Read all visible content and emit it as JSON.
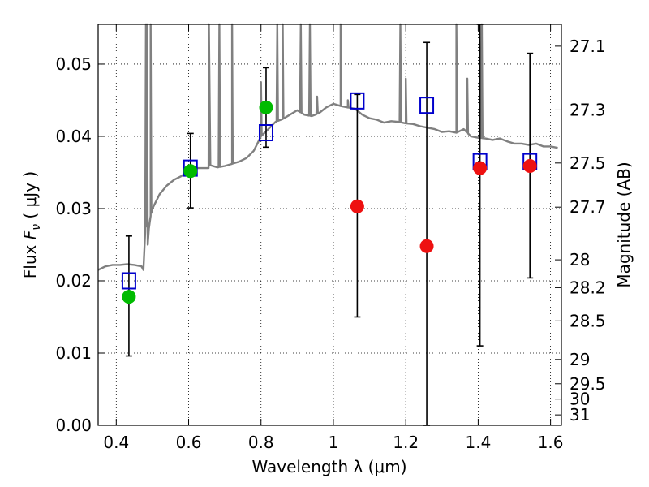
{
  "chart_data": {
    "type": "scatter",
    "xlabel": "Wavelength  λ (μm)",
    "ylabel_prefix": "Flux  ",
    "ylabel_symbol": "F",
    "ylabel_subscript": "ν",
    "ylabel_suffix": "  ( μJy )",
    "y2label": "Magnitude (AB)",
    "xlim": [
      0.35,
      1.63
    ],
    "ylim": [
      0.0,
      0.0555
    ],
    "grid": true,
    "x_ticks": [
      {
        "value": 0.4,
        "label": "0.4"
      },
      {
        "value": 0.6,
        "label": "0.6"
      },
      {
        "value": 0.8,
        "label": "0.8"
      },
      {
        "value": 1.0,
        "label": "1"
      },
      {
        "value": 1.2,
        "label": "1.2"
      },
      {
        "value": 1.4,
        "label": "1.4"
      },
      {
        "value": 1.6,
        "label": "1.6"
      }
    ],
    "y_ticks": [
      {
        "value": 0.0,
        "label": "0.00"
      },
      {
        "value": 0.01,
        "label": "0.01"
      },
      {
        "value": 0.02,
        "label": "0.02"
      },
      {
        "value": 0.03,
        "label": "0.03"
      },
      {
        "value": 0.04,
        "label": "0.04"
      },
      {
        "value": 0.05,
        "label": "0.05"
      }
    ],
    "y2_ticks": [
      {
        "value": 27.1,
        "label": "27.1"
      },
      {
        "value": 27.3,
        "label": "27.3"
      },
      {
        "value": 27.5,
        "label": "27.5"
      },
      {
        "value": 27.7,
        "label": "27.7"
      },
      {
        "value": 28.0,
        "label": "28"
      },
      {
        "value": 28.2,
        "label": "28.2"
      },
      {
        "value": 28.5,
        "label": "28.5"
      },
      {
        "value": 29.0,
        "label": "29"
      },
      {
        "value": 29.5,
        "label": "29.5"
      },
      {
        "value": 30.0,
        "label": "30"
      },
      {
        "value": 31.0,
        "label": "31"
      }
    ],
    "series": [
      {
        "type": "line",
        "color": "#808080",
        "x": [
          0.35,
          0.37,
          0.39,
          0.41,
          0.43,
          0.45,
          0.47,
          0.475,
          0.48,
          0.482,
          0.485,
          0.487,
          0.49,
          0.495,
          0.5,
          0.52,
          0.54,
          0.56,
          0.58,
          0.6,
          0.62,
          0.64,
          0.655,
          0.656,
          0.66,
          0.68,
          0.7,
          0.72,
          0.74,
          0.76,
          0.78,
          0.8,
          0.82,
          0.84,
          0.86,
          0.88,
          0.9,
          0.92,
          0.94,
          0.96,
          0.98,
          1.0,
          1.02,
          1.04,
          1.06,
          1.08,
          1.1,
          1.12,
          1.14,
          1.16,
          1.18,
          1.2,
          1.22,
          1.24,
          1.26,
          1.28,
          1.3,
          1.32,
          1.34,
          1.36,
          1.38,
          1.4,
          1.42,
          1.44,
          1.46,
          1.48,
          1.5,
          1.52,
          1.54,
          1.56,
          1.58,
          1.6,
          1.62
        ],
        "y": [
          0.0215,
          0.022,
          0.0222,
          0.0222,
          0.0223,
          0.0222,
          0.022,
          0.0215,
          0.0268,
          0.0555,
          0.0275,
          0.025,
          0.0272,
          0.029,
          0.03,
          0.032,
          0.0332,
          0.034,
          0.0345,
          0.0352,
          0.0356,
          0.0356,
          0.0356,
          0.0555,
          0.036,
          0.0357,
          0.0359,
          0.0362,
          0.0365,
          0.037,
          0.038,
          0.04,
          0.041,
          0.042,
          0.0424,
          0.043,
          0.0436,
          0.043,
          0.0428,
          0.0432,
          0.044,
          0.0445,
          0.0442,
          0.044,
          0.0438,
          0.043,
          0.0425,
          0.0423,
          0.0419,
          0.0421,
          0.042,
          0.0418,
          0.0417,
          0.0414,
          0.0412,
          0.041,
          0.0406,
          0.0407,
          0.0405,
          0.041,
          0.04,
          0.0398,
          0.0397,
          0.0395,
          0.0397,
          0.0393,
          0.039,
          0.039,
          0.0388,
          0.039,
          0.0386,
          0.0386,
          0.0384
        ]
      },
      {
        "type": "errorbar",
        "color": "#000000",
        "points": [
          {
            "x": 0.435,
            "low": 0.0096,
            "high": 0.0262
          },
          {
            "x": 0.605,
            "low": 0.0301,
            "high": 0.0404
          },
          {
            "x": 0.814,
            "low": 0.0385,
            "high": 0.0495
          },
          {
            "x": 1.066,
            "low": 0.015,
            "high": 0.0458
          },
          {
            "x": 1.258,
            "low": 0.0,
            "high": 0.053
          },
          {
            "x": 1.405,
            "low": 0.011,
            "high": 0.0555
          },
          {
            "x": 1.543,
            "low": 0.0204,
            "high": 0.0515
          }
        ]
      },
      {
        "type": "markers",
        "marker": "square",
        "color": "#0000cc",
        "x": [
          0.435,
          0.605,
          0.814,
          1.066,
          1.258,
          1.405,
          1.543
        ],
        "y": [
          0.02,
          0.0356,
          0.0405,
          0.0449,
          0.0443,
          0.0365,
          0.0365
        ]
      },
      {
        "type": "markers",
        "marker": "circle",
        "color": "#00bb00",
        "x": [
          0.435,
          0.605,
          0.814
        ],
        "y": [
          0.0178,
          0.0352,
          0.044
        ]
      },
      {
        "type": "markers",
        "marker": "circle",
        "color": "#ee1111",
        "x": [
          1.066,
          1.258,
          1.405,
          1.543
        ],
        "y": [
          0.0303,
          0.0248,
          0.0356,
          0.0359
        ]
      }
    ],
    "emission_lines": [
      {
        "x": 0.485,
        "peak": 0.0555
      },
      {
        "x": 0.495,
        "peak": 0.0555
      },
      {
        "x": 0.656,
        "peak": 0.0555
      },
      {
        "x": 0.685,
        "peak": 0.0555
      },
      {
        "x": 0.72,
        "peak": 0.0555
      },
      {
        "x": 0.8,
        "peak": 0.0475
      },
      {
        "x": 0.845,
        "peak": 0.0555
      },
      {
        "x": 0.86,
        "peak": 0.0555
      },
      {
        "x": 0.91,
        "peak": 0.0555
      },
      {
        "x": 0.935,
        "peak": 0.0555
      },
      {
        "x": 0.955,
        "peak": 0.0455
      },
      {
        "x": 1.02,
        "peak": 0.0555
      },
      {
        "x": 1.04,
        "peak": 0.045
      },
      {
        "x": 1.185,
        "peak": 0.0555
      },
      {
        "x": 1.2,
        "peak": 0.048
      },
      {
        "x": 1.34,
        "peak": 0.0555
      },
      {
        "x": 1.37,
        "peak": 0.048
      },
      {
        "x": 1.41,
        "peak": 0.0555
      }
    ]
  }
}
